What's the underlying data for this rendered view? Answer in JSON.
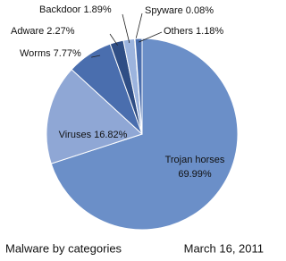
{
  "chart_data": {
    "type": "pie",
    "title": "Malware by categories",
    "date": "March 16, 2011",
    "categories": [
      "Trojan horses",
      "Viruses",
      "Worms",
      "Adware",
      "Backdoor",
      "Spyware",
      "Others"
    ],
    "values": [
      69.99,
      16.82,
      7.77,
      2.27,
      1.89,
      0.08,
      1.18
    ],
    "value_labels": [
      "69.99%",
      "16.82%",
      "7.77%",
      "2.27%",
      "1.89%",
      "0.08%",
      "1.18%"
    ],
    "colors": [
      "#6b8fc8",
      "#8fa7d5",
      "#4a6eae",
      "#2f4e85",
      "#9cb4de",
      "#2f4e85",
      "#4a6eae"
    ]
  }
}
